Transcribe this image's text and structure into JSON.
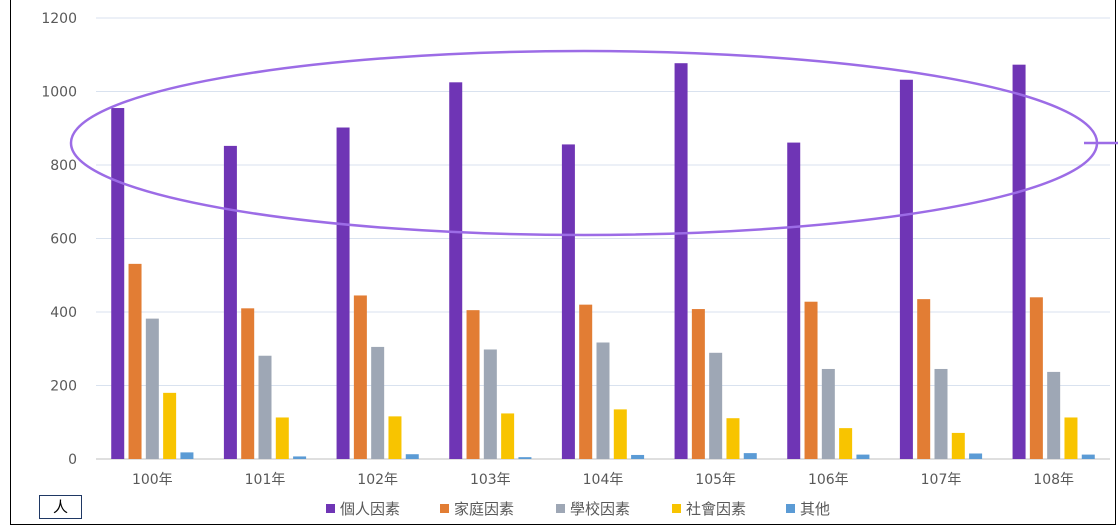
{
  "chart_data": {
    "type": "bar",
    "unit_label": "人",
    "categories": [
      "100年",
      "101年",
      "102年",
      "103年",
      "104年",
      "105年",
      "106年",
      "107年",
      "108年"
    ],
    "y_ticks": [
      "0",
      "200",
      "400",
      "600",
      "800",
      "1000",
      "1200"
    ],
    "ylim": [
      0,
      1200
    ],
    "grid": true,
    "legend_position": "bottom",
    "series": [
      {
        "name": "個人因素",
        "color": "#6f35b5",
        "values": [
          955,
          852,
          902,
          1025,
          856,
          1077,
          861,
          1032,
          1073
        ]
      },
      {
        "name": "家庭因素",
        "color": "#e27d34",
        "values": [
          531,
          410,
          445,
          405,
          420,
          408,
          428,
          435,
          440
        ]
      },
      {
        "name": "學校因素",
        "color": "#9ea7b5",
        "values": [
          382,
          281,
          305,
          298,
          317,
          289,
          245,
          245,
          237
        ]
      },
      {
        "name": "社會因素",
        "color": "#f8c400",
        "values": [
          180,
          113,
          116,
          124,
          135,
          111,
          84,
          71,
          113
        ]
      },
      {
        "name": "其他",
        "color": "#5b9bd5",
        "values": [
          18,
          7,
          13,
          5,
          11,
          16,
          12,
          15,
          12
        ]
      }
    ],
    "annotation": {
      "shape": "ellipse",
      "color": "#9c6ce6",
      "highlights": "個人因素"
    }
  }
}
